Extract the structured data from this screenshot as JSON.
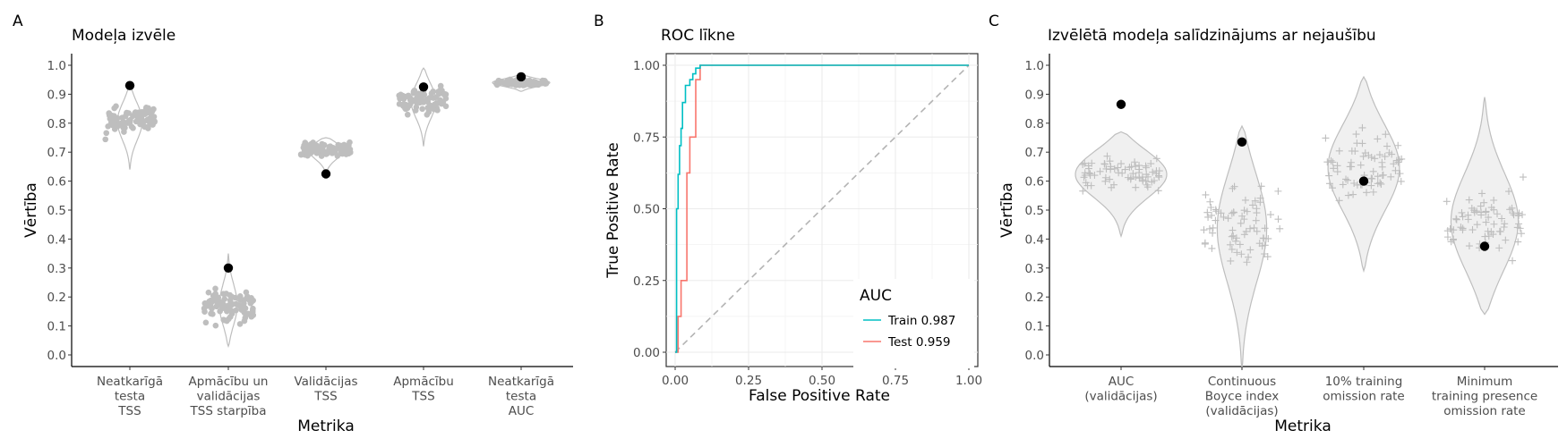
{
  "panels": [
    {
      "tag": "A",
      "title": "Modeļa izvēle",
      "xlabel": "Metrika",
      "ylabel": "Vērtība"
    },
    {
      "tag": "B",
      "title": "ROC līkne",
      "xlabel": "False Positive Rate",
      "ylabel": "True Positive Rate"
    },
    {
      "tag": "C",
      "title": "Izvēlētā modeļa salīdzinājums ar nejaušību",
      "xlabel": "Metrika",
      "ylabel": "Vērtība"
    }
  ],
  "colors": {
    "points": "#bebebe",
    "highlight": "#000000",
    "violin_fill": "#f0f0f0",
    "violin_stroke": "#bebebe",
    "train": "#00bfc4",
    "test": "#f8766d",
    "diagonal": "#b3b3b3"
  },
  "chart_data": [
    {
      "type": "scatter",
      "subtype": "jitter with violin outline",
      "title": "Modeļa izvēle",
      "xlabel": "Metrika",
      "ylabel": "Vērtība",
      "ylim": [
        0,
        1
      ],
      "yticks": [
        "0.0",
        "0.1",
        "0.2",
        "0.3",
        "0.4",
        "0.5",
        "0.6",
        "0.7",
        "0.8",
        "0.9",
        "1.0"
      ],
      "categories": [
        [
          "Neatkarīgā",
          "testa",
          "TSS"
        ],
        [
          "Apmācību un",
          "validācijas",
          "TSS starpība"
        ],
        [
          "Validācijas",
          "TSS"
        ],
        [
          "Apmācību",
          "TSS"
        ],
        [
          "Neatkarīgā",
          "testa",
          "AUC"
        ]
      ],
      "distributions": [
        {
          "min": 0.64,
          "max": 0.93,
          "center": 0.81
        },
        {
          "min": 0.03,
          "max": 0.35,
          "center": 0.17
        },
        {
          "min": 0.61,
          "max": 0.75,
          "center": 0.71
        },
        {
          "min": 0.72,
          "max": 0.99,
          "center": 0.88
        },
        {
          "min": 0.91,
          "max": 0.97,
          "center": 0.94
        }
      ],
      "selected_values": [
        0.93,
        0.3,
        0.625,
        0.925,
        0.96
      ],
      "grid": true
    },
    {
      "type": "line",
      "title": "ROC līkne",
      "xlabel": "False Positive Rate",
      "ylabel": "True Positive Rate",
      "xlim": [
        0,
        1
      ],
      "ylim": [
        0,
        1
      ],
      "xticks": [
        "0.00",
        "0.25",
        "0.50",
        "0.75",
        "1.00"
      ],
      "yticks": [
        "0.00",
        "0.25",
        "0.50",
        "0.75",
        "1.00"
      ],
      "legend_title": "AUC",
      "legend_position": "bottom-right",
      "series": [
        {
          "name": "Train 0.987",
          "x": [
            0,
            0.005,
            0.005,
            0.01,
            0.01,
            0.015,
            0.015,
            0.02,
            0.02,
            0.025,
            0.025,
            0.035,
            0.035,
            0.05,
            0.05,
            0.06,
            0.06,
            0.07,
            0.07,
            0.085,
            0.085,
            1
          ],
          "y": [
            0,
            0,
            0.5,
            0.5,
            0.62,
            0.62,
            0.72,
            0.72,
            0.78,
            0.78,
            0.87,
            0.87,
            0.93,
            0.93,
            0.95,
            0.95,
            0.97,
            0.97,
            0.99,
            0.99,
            1,
            1
          ]
        },
        {
          "name": "Test 0.959",
          "x": [
            0,
            0.01,
            0.01,
            0.02,
            0.02,
            0.04,
            0.04,
            0.05,
            0.05,
            0.07,
            0.07,
            0.085,
            0.085,
            1
          ],
          "y": [
            0,
            0,
            0.125,
            0.125,
            0.25,
            0.25,
            0.625,
            0.625,
            0.75,
            0.75,
            0.95,
            0.95,
            1,
            1
          ]
        }
      ],
      "reference_line": {
        "x": [
          0,
          1
        ],
        "y": [
          0,
          1
        ]
      },
      "grid": true
    },
    {
      "type": "scatter",
      "subtype": "jitter with violin",
      "title": "Izvēlētā modeļa salīdzinājums ar nejaušību",
      "xlabel": "Metrika",
      "ylabel": "Vērtība",
      "ylim": [
        0,
        1
      ],
      "yticks": [
        "0.0",
        "0.1",
        "0.2",
        "0.3",
        "0.4",
        "0.5",
        "0.6",
        "0.7",
        "0.8",
        "0.9",
        "1.0"
      ],
      "categories": [
        [
          "AUC",
          "(validācijas)"
        ],
        [
          "Continuous",
          "Boyce index",
          "(validācijas)"
        ],
        [
          "10% training",
          "omission rate"
        ],
        [
          "Minimum",
          "training presence",
          "omission rate"
        ]
      ],
      "distributions": [
        {
          "min": 0.41,
          "max": 0.77,
          "center": 0.63
        },
        {
          "min": -0.05,
          "max": 0.79,
          "center": 0.45
        },
        {
          "min": 0.29,
          "max": 0.96,
          "center": 0.65
        },
        {
          "min": 0.14,
          "max": 0.89,
          "center": 0.45
        }
      ],
      "selected_values": [
        0.865,
        0.735,
        0.6,
        0.375
      ],
      "grid": true
    }
  ]
}
